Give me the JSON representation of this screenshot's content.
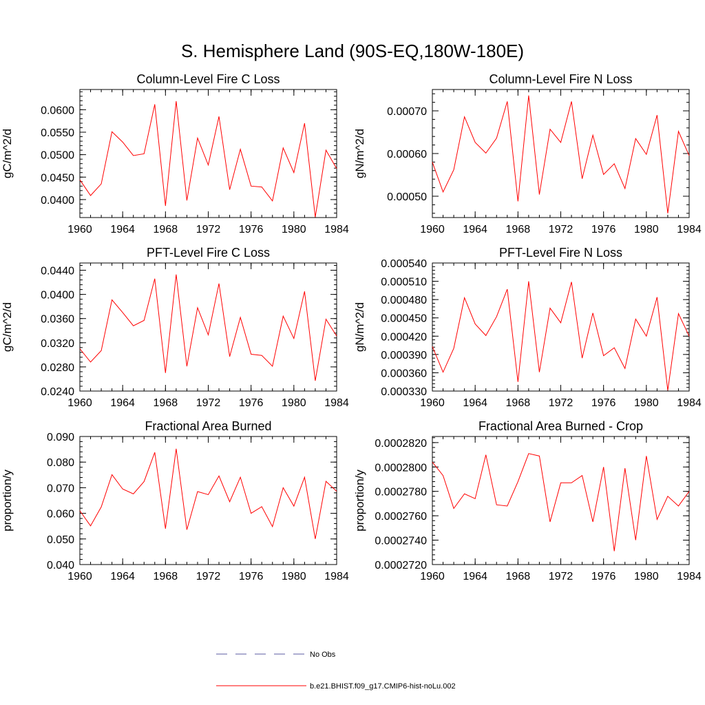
{
  "figure": {
    "title": "S. Hemisphere Land (90S-EQ,180W-180E)"
  },
  "legend": {
    "entries": [
      {
        "label": "No Obs",
        "color": "#5a5aa0",
        "dashed": true
      },
      {
        "label": "b.e21.BHIST.f09_g17.CMIP6-hist-noLu.002",
        "color": "#ff0000",
        "dashed": false
      }
    ]
  },
  "chart_data": [
    {
      "type": "line",
      "title": "Column-Level Fire C Loss",
      "ylabel": "gC/m^2/d",
      "xlim": [
        1960,
        1984
      ],
      "ylim": [
        0.036,
        0.0645
      ],
      "xticks": [
        1960,
        1964,
        1968,
        1972,
        1976,
        1980,
        1984
      ],
      "xtick_labels": [
        "1960",
        "1964",
        "1968",
        "1972",
        "1976",
        "1980",
        "1984"
      ],
      "yticks": [
        0.04,
        0.045,
        0.05,
        0.055,
        0.06
      ],
      "ytick_labels": [
        "0.0400",
        "0.0450",
        "0.0500",
        "0.0550",
        "0.0600"
      ],
      "series": [
        {
          "color": "#ff0000",
          "x": [
            1960,
            1961,
            1962,
            1963,
            1964,
            1965,
            1966,
            1967,
            1968,
            1969,
            1970,
            1971,
            1972,
            1973,
            1974,
            1975,
            1976,
            1977,
            1978,
            1979,
            1980,
            1981,
            1982,
            1983,
            1984
          ],
          "y": [
            0.0444,
            0.0409,
            0.0435,
            0.0551,
            0.0528,
            0.0498,
            0.0502,
            0.0612,
            0.0386,
            0.0619,
            0.0398,
            0.0537,
            0.0477,
            0.0585,
            0.0422,
            0.0512,
            0.043,
            0.0428,
            0.0397,
            0.0515,
            0.046,
            0.057,
            0.0361,
            0.051,
            0.0469
          ]
        }
      ]
    },
    {
      "type": "line",
      "title": "Column-Level Fire N Loss",
      "ylabel": "gN/m^2/d",
      "xlim": [
        1960,
        1984
      ],
      "ylim": [
        0.00045,
        0.00075
      ],
      "xticks": [
        1960,
        1964,
        1968,
        1972,
        1976,
        1980,
        1984
      ],
      "xtick_labels": [
        "1960",
        "1964",
        "1968",
        "1972",
        "1976",
        "1980",
        "1984"
      ],
      "yticks": [
        0.0005,
        0.0006,
        0.0007
      ],
      "ytick_labels": [
        "0.00050",
        "0.00060",
        "0.00070"
      ],
      "series": [
        {
          "color": "#ff0000",
          "x": [
            1960,
            1961,
            1962,
            1963,
            1964,
            1965,
            1966,
            1967,
            1968,
            1969,
            1970,
            1971,
            1972,
            1973,
            1974,
            1975,
            1976,
            1977,
            1978,
            1979,
            1980,
            1981,
            1982,
            1983,
            1984
          ],
          "y": [
            0.00058,
            0.00051,
            0.000562,
            0.000686,
            0.000626,
            0.000601,
            0.000636,
            0.000722,
            0.000488,
            0.000736,
            0.000504,
            0.000657,
            0.000626,
            0.000722,
            0.000541,
            0.000643,
            0.000551,
            0.000576,
            0.000518,
            0.000635,
            0.000598,
            0.00069,
            0.00046,
            0.000652,
            0.000595
          ]
        }
      ]
    },
    {
      "type": "line",
      "title": "PFT-Level Fire C Loss",
      "ylabel": "gC/m^2/d",
      "xlim": [
        1960,
        1984
      ],
      "ylim": [
        0.024,
        0.0452
      ],
      "xticks": [
        1960,
        1964,
        1968,
        1972,
        1976,
        1980,
        1984
      ],
      "xtick_labels": [
        "1960",
        "1964",
        "1968",
        "1972",
        "1976",
        "1980",
        "1984"
      ],
      "yticks": [
        0.024,
        0.028,
        0.032,
        0.036,
        0.04,
        0.044
      ],
      "ytick_labels": [
        "0.0240",
        "0.0280",
        "0.0320",
        "0.0360",
        "0.0400",
        "0.0440"
      ],
      "series": [
        {
          "color": "#ff0000",
          "x": [
            1960,
            1961,
            1962,
            1963,
            1964,
            1965,
            1966,
            1967,
            1968,
            1969,
            1970,
            1971,
            1972,
            1973,
            1974,
            1975,
            1976,
            1977,
            1978,
            1979,
            1980,
            1981,
            1982,
            1983,
            1984
          ],
          "y": [
            0.031,
            0.0288,
            0.0307,
            0.0391,
            0.037,
            0.0348,
            0.0357,
            0.0426,
            0.027,
            0.0433,
            0.0281,
            0.0378,
            0.0333,
            0.0418,
            0.0297,
            0.0362,
            0.0301,
            0.0299,
            0.0281,
            0.0364,
            0.0327,
            0.0405,
            0.0257,
            0.0359,
            0.0331
          ]
        }
      ]
    },
    {
      "type": "line",
      "title": "PFT-Level Fire N Loss",
      "ylabel": "gN/m^2/d",
      "xlim": [
        1960,
        1984
      ],
      "ylim": [
        0.00033,
        0.00054
      ],
      "xticks": [
        1960,
        1964,
        1968,
        1972,
        1976,
        1980,
        1984
      ],
      "xtick_labels": [
        "1960",
        "1964",
        "1968",
        "1972",
        "1976",
        "1980",
        "1984"
      ],
      "yticks": [
        0.00033,
        0.00036,
        0.00039,
        0.00042,
        0.00045,
        0.00048,
        0.00051,
        0.00054
      ],
      "ytick_labels": [
        "0.000330",
        "0.000360",
        "0.000390",
        "0.000420",
        "0.000450",
        "0.000480",
        "0.000510",
        "0.000540"
      ],
      "series": [
        {
          "color": "#ff0000",
          "x": [
            1960,
            1961,
            1962,
            1963,
            1964,
            1965,
            1966,
            1967,
            1968,
            1969,
            1970,
            1971,
            1972,
            1973,
            1974,
            1975,
            1976,
            1977,
            1978,
            1979,
            1980,
            1981,
            1982,
            1983,
            1984
          ],
          "y": [
            0.000403,
            0.000361,
            0.0004,
            0.000483,
            0.00044,
            0.000421,
            0.000452,
            0.000497,
            0.000345,
            0.00051,
            0.000361,
            0.000466,
            0.000442,
            0.000509,
            0.000384,
            0.000458,
            0.000388,
            0.000401,
            0.000367,
            0.000448,
            0.00042,
            0.000484,
            0.000331,
            0.000457,
            0.00042
          ]
        }
      ]
    },
    {
      "type": "line",
      "title": "Fractional Area Burned",
      "ylabel": "proportion/y",
      "xlim": [
        1960,
        1984
      ],
      "ylim": [
        0.04,
        0.09
      ],
      "xticks": [
        1960,
        1964,
        1968,
        1972,
        1976,
        1980,
        1984
      ],
      "xtick_labels": [
        "1960",
        "1964",
        "1968",
        "1972",
        "1976",
        "1980",
        "1984"
      ],
      "yticks": [
        0.04,
        0.05,
        0.06,
        0.07,
        0.08,
        0.09
      ],
      "ytick_labels": [
        "0.040",
        "0.050",
        "0.060",
        "0.070",
        "0.080",
        "0.090"
      ],
      "series": [
        {
          "color": "#ff0000",
          "x": [
            1960,
            1961,
            1962,
            1963,
            1964,
            1965,
            1966,
            1967,
            1968,
            1969,
            1970,
            1971,
            1972,
            1973,
            1974,
            1975,
            1976,
            1977,
            1978,
            1979,
            1980,
            1981,
            1982,
            1983,
            1984
          ],
          "y": [
            0.061,
            0.0551,
            0.0625,
            0.0751,
            0.0695,
            0.0676,
            0.0724,
            0.0838,
            0.054,
            0.0852,
            0.0536,
            0.0685,
            0.0673,
            0.0746,
            0.0645,
            0.0741,
            0.06,
            0.0626,
            0.0548,
            0.07,
            0.0628,
            0.0741,
            0.05,
            0.0725,
            0.0686
          ]
        }
      ]
    },
    {
      "type": "line",
      "title": "Fractional Area Burned - Crop",
      "ylabel": "proportion/y",
      "xlim": [
        1960,
        1984
      ],
      "ylim": [
        0.000272,
        0.0002825
      ],
      "xticks": [
        1960,
        1964,
        1968,
        1972,
        1976,
        1980,
        1984
      ],
      "xtick_labels": [
        "1960",
        "1964",
        "1968",
        "1972",
        "1976",
        "1980",
        "1984"
      ],
      "yticks": [
        0.000272,
        0.000274,
        0.000276,
        0.000278,
        0.00028,
        0.000282
      ],
      "ytick_labels": [
        "0.0002720",
        "0.0002740",
        "0.0002760",
        "0.0002780",
        "0.0002800",
        "0.0002820"
      ],
      "series": [
        {
          "color": "#ff0000",
          "x": [
            1960,
            1961,
            1962,
            1963,
            1964,
            1965,
            1966,
            1967,
            1968,
            1969,
            1970,
            1971,
            1972,
            1973,
            1974,
            1975,
            1976,
            1977,
            1978,
            1979,
            1980,
            1981,
            1982,
            1983,
            1984
          ],
          "y": [
            0.0002804,
            0.0002793,
            0.0002766,
            0.0002778,
            0.0002774,
            0.000281,
            0.0002769,
            0.0002768,
            0.0002788,
            0.0002811,
            0.0002809,
            0.0002755,
            0.0002787,
            0.0002787,
            0.0002793,
            0.0002755,
            0.00028,
            0.0002731,
            0.0002799,
            0.000274,
            0.0002809,
            0.0002757,
            0.0002776,
            0.0002768,
            0.000278
          ]
        }
      ]
    }
  ]
}
